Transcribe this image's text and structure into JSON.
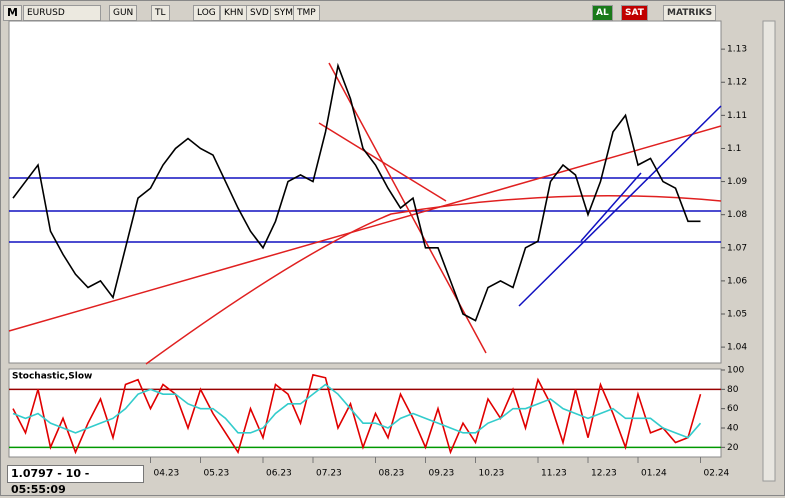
{
  "toolbar": {
    "buttons": [
      "M",
      "EURUSD",
      "GUN",
      "TL",
      "LOG",
      "KHN",
      "SVD",
      "SYM",
      "TMP",
      "AL",
      "SAT",
      "MATRIKS"
    ]
  },
  "status": "1.0797 - 10 - 05:55:09",
  "chart_data": [
    {
      "type": "line",
      "color": "#000000",
      "values": [
        1.085,
        1.09,
        1.095,
        1.075,
        1.068,
        1.062,
        1.058,
        1.06,
        1.055,
        1.07,
        1.085,
        1.088,
        1.095,
        1.1,
        1.103,
        1.1,
        1.098,
        1.09,
        1.082,
        1.075,
        1.07,
        1.078,
        1.09,
        1.092,
        1.09,
        1.105,
        1.125,
        1.115,
        1.1,
        1.095,
        1.088,
        1.082,
        1.085,
        1.07,
        1.07,
        1.06,
        1.05,
        1.048,
        1.058,
        1.06,
        1.058,
        1.07,
        1.072,
        1.09,
        1.095,
        1.092,
        1.08,
        1.09,
        1.105,
        1.11,
        1.095,
        1.097,
        1.09,
        1.088,
        1.078,
        1.078
      ],
      "ylim": [
        1.0352,
        1.1385
      ],
      "yticks": [
        1.13,
        1.12,
        1.11,
        1.1,
        1.09,
        1.08,
        1.07,
        1.06,
        1.05,
        1.04
      ]
    },
    {
      "type": "line",
      "title": "Stochastic,Slow",
      "categories": [
        null,
        null,
        null,
        null,
        null,
        null,
        null,
        null,
        null,
        null,
        null,
        "04.23",
        null,
        null,
        null,
        "05.23",
        null,
        null,
        null,
        null,
        "06.23",
        null,
        null,
        null,
        "07.23",
        null,
        null,
        null,
        null,
        "08.23",
        null,
        null,
        null,
        "09.23",
        null,
        null,
        null,
        "10.23",
        null,
        null,
        null,
        null,
        "11.23",
        null,
        null,
        null,
        "12.23",
        null,
        null,
        null,
        "01.24",
        null,
        null,
        null,
        null,
        "02.24"
      ],
      "series": [
        {
          "color": "#e00000",
          "values": [
            60,
            35,
            80,
            20,
            50,
            15,
            45,
            70,
            30,
            85,
            90,
            60,
            85,
            75,
            40,
            80,
            55,
            35,
            15,
            60,
            30,
            85,
            75,
            45,
            95,
            92,
            40,
            65,
            20,
            55,
            30,
            75,
            50,
            20,
            60,
            15,
            45,
            25,
            70,
            50,
            80,
            40,
            90,
            65,
            25,
            80,
            30,
            85,
            55,
            20,
            75,
            35,
            40,
            25,
            30,
            75
          ]
        },
        {
          "color": "#33cccc",
          "values": [
            55,
            50,
            55,
            45,
            40,
            35,
            40,
            45,
            50,
            60,
            75,
            80,
            75,
            75,
            65,
            60,
            60,
            50,
            35,
            35,
            40,
            55,
            65,
            65,
            75,
            85,
            75,
            60,
            45,
            45,
            40,
            50,
            55,
            50,
            45,
            40,
            35,
            35,
            45,
            50,
            60,
            60,
            65,
            70,
            60,
            55,
            50,
            55,
            60,
            50,
            50,
            50,
            40,
            35,
            30,
            45
          ]
        }
      ],
      "ylim": [
        10,
        100
      ],
      "yticks": [
        100,
        80,
        60,
        40,
        20
      ],
      "hlines": [
        {
          "value": 80,
          "color": "#990000"
        },
        {
          "value": 20,
          "color": "#009900"
        }
      ]
    }
  ]
}
